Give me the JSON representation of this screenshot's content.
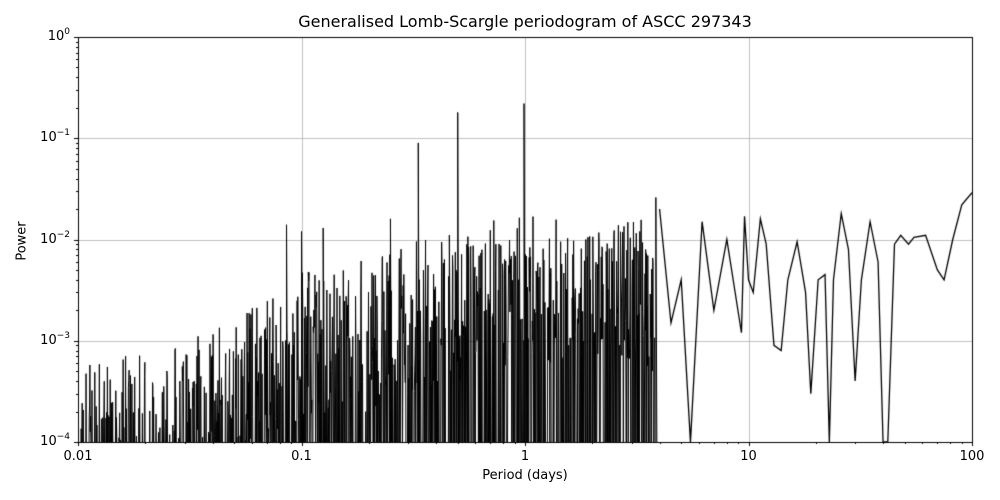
{
  "chart_data": {
    "type": "line",
    "title": "Generalised Lomb-Scargle periodogram of ASCC 297343",
    "xlabel": "Period (days)",
    "ylabel": "Power",
    "xscale": "log",
    "yscale": "log",
    "xlim": [
      0.01,
      100
    ],
    "ylim": [
      0.0001,
      1
    ],
    "grid": true,
    "legend": null,
    "x_ticks": [
      {
        "value": 0.01,
        "label": "0.01"
      },
      {
        "value": 0.1,
        "label": "0.1"
      },
      {
        "value": 1,
        "label": "1"
      },
      {
        "value": 10,
        "label": "10"
      },
      {
        "value": 100,
        "label": "100"
      }
    ],
    "y_ticks": [
      {
        "value": 0.0001,
        "base": "10",
        "exp": "−4"
      },
      {
        "value": 0.001,
        "base": "10",
        "exp": "−3"
      },
      {
        "value": 0.01,
        "base": "10",
        "exp": "−2"
      },
      {
        "value": 0.1,
        "base": "10",
        "exp": "−1"
      },
      {
        "value": 1,
        "base": "10",
        "exp": "0"
      }
    ],
    "noise_envelope": {
      "x": [
        0.01,
        0.02,
        0.05,
        0.1,
        0.2,
        0.3,
        0.5,
        1.0,
        2.0,
        3.5
      ],
      "upper": [
        0.0004,
        0.0005,
        0.001,
        0.003,
        0.004,
        0.006,
        0.008,
        0.012,
        0.012,
        0.01
      ]
    },
    "notable_peaks": [
      {
        "period": 0.0857,
        "power": 0.014
      },
      {
        "period": 0.1,
        "power": 0.012
      },
      {
        "period": 0.125,
        "power": 0.013
      },
      {
        "period": 0.25,
        "power": 0.016
      },
      {
        "period": 0.333,
        "power": 0.09
      },
      {
        "period": 0.5,
        "power": 0.18
      },
      {
        "period": 0.99,
        "power": 0.22
      },
      {
        "period": 3.85,
        "power": 0.026
      }
    ],
    "smooth_tail": {
      "x": [
        4,
        4.5,
        5,
        5.5,
        6.2,
        7,
        8,
        9.3,
        9.6,
        10,
        10.5,
        11.3,
        12,
        13,
        14,
        15,
        16.5,
        18,
        19,
        20.5,
        22,
        23,
        24,
        26,
        28,
        30,
        32,
        35,
        38,
        40,
        42,
        45,
        48,
        52,
        55,
        62,
        70,
        75,
        82,
        90,
        100
      ],
      "y": [
        0.02,
        0.0015,
        0.004,
        0.0001,
        0.015,
        0.002,
        0.01,
        0.0012,
        0.017,
        0.004,
        0.003,
        0.016,
        0.009,
        0.0009,
        0.0008,
        0.004,
        0.0095,
        0.003,
        0.0003,
        0.004,
        0.0045,
        0.0001,
        0.004,
        0.018,
        0.008,
        0.0004,
        0.004,
        0.015,
        0.006,
        0.0001,
        0.0001,
        0.009,
        0.011,
        0.009,
        0.0105,
        0.011,
        0.005,
        0.004,
        0.01,
        0.022,
        0.029
      ]
    }
  }
}
